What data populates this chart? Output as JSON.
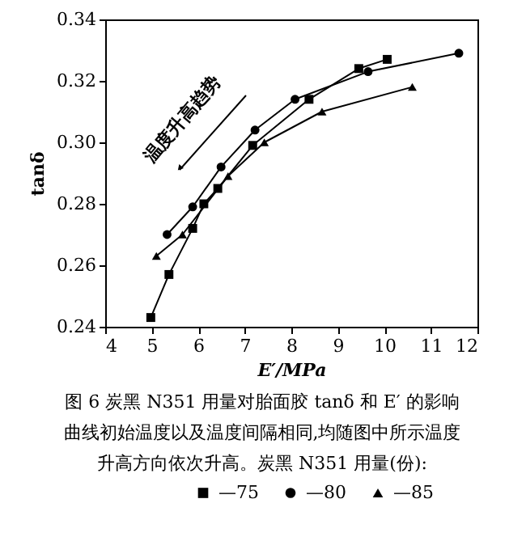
{
  "chart_data": {
    "type": "line",
    "title": "图 6  炭黑 N351 用量对胎面胶 tanδ 和 E′ 的影响",
    "xlabel": "E′/MPa",
    "ylabel": "tanδ",
    "annotations": [
      "温度升高趋势",
      "曲线初始温度以及温度间隔相同,均随图中所示温度",
      "升高方向依次升高。炭黑 N351 用量(份):"
    ],
    "xlim": [
      4,
      12
    ],
    "xticks": [
      4,
      5,
      6,
      7,
      8,
      9,
      10,
      11,
      12
    ],
    "ylim": [
      0.24,
      0.34
    ],
    "yticks": [
      0.24,
      0.26,
      0.28,
      {
        "value": 0.3,
        "label": "0.30"
      },
      0.32,
      0.34
    ],
    "grid": false,
    "legend": "bottom",
    "line_style": "solid",
    "series": [
      {
        "name": "—75",
        "color": "#000000",
        "marker": "square",
        "x": [
          4.98,
          5.37,
          5.88,
          6.12,
          6.42,
          7.17,
          8.38,
          9.45,
          10.06
        ],
        "values": [
          0.243,
          0.257,
          0.272,
          0.28,
          0.285,
          0.299,
          0.314,
          0.324,
          0.327
        ]
      },
      {
        "name": "—80",
        "color": "#000000",
        "marker": "circle",
        "x": [
          5.33,
          5.88,
          6.49,
          7.22,
          8.08,
          9.65,
          11.6
        ],
        "values": [
          0.27,
          0.279,
          0.292,
          0.304,
          0.314,
          0.323,
          0.329
        ]
      },
      {
        "name": "—85",
        "color": "#000000",
        "marker": "triangle",
        "x": [
          5.1,
          5.66,
          6.64,
          7.42,
          8.66,
          10.6
        ],
        "values": [
          0.263,
          0.27,
          0.289,
          0.3,
          0.31,
          0.318
        ]
      }
    ]
  }
}
